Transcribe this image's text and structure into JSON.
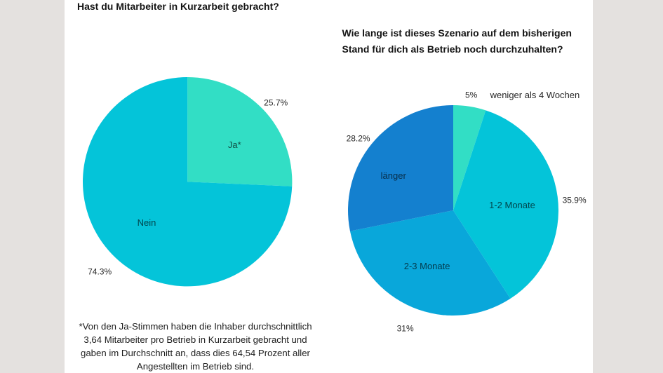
{
  "canvas": {
    "background": "#ffffff",
    "letterbox_color": "#e4e1df"
  },
  "chart_data": [
    {
      "type": "pie",
      "title": "Hast du Mitarbeiter in Kurzarbeit gebracht?",
      "legend_position": "none",
      "labels_on_slices": true,
      "slices": [
        {
          "label": "Ja*",
          "value": 25.7,
          "percent_label": "25.7%",
          "color": "#32dec5",
          "label_inside": true
        },
        {
          "label": "Nein",
          "value": 74.3,
          "percent_label": "74.3%",
          "color": "#04c4d9",
          "label_inside": true
        }
      ],
      "start_angle": "12 o'clock",
      "direction": "clockwise",
      "footnote_lines": [
        "*Von den Ja-Stimmen haben die Inhaber durchschnittlich",
        "3,64 Mitarbeiter pro Betrieb in Kurzarbeit gebracht und",
        "gaben im Durchschnitt an, dass dies 64,54 Prozent aller",
        "Angestellten im Betrieb sind."
      ]
    },
    {
      "type": "pie",
      "title": "Wie lange ist dieses Szenario auf dem bisherigen Stand für dich als Betrieb noch durchzuhalten?",
      "legend_position": "none",
      "labels_on_slices": true,
      "slices": [
        {
          "label": "weniger als 4 Wochen",
          "value": 5,
          "percent_label": "5%",
          "color": "#32dec5",
          "label_inside": false
        },
        {
          "label": "1-2 Monate",
          "value": 35.9,
          "percent_label": "35.9%",
          "color": "#04c4d9",
          "label_inside": true
        },
        {
          "label": "2-3 Monate",
          "value": 31,
          "percent_label": "31%",
          "color": "#09a7da",
          "label_inside": true
        },
        {
          "label": "länger",
          "value": 28.2,
          "percent_label": "28.2%",
          "color": "#1480cf",
          "label_inside": true
        }
      ],
      "start_angle": "12 o'clock",
      "direction": "clockwise"
    }
  ]
}
